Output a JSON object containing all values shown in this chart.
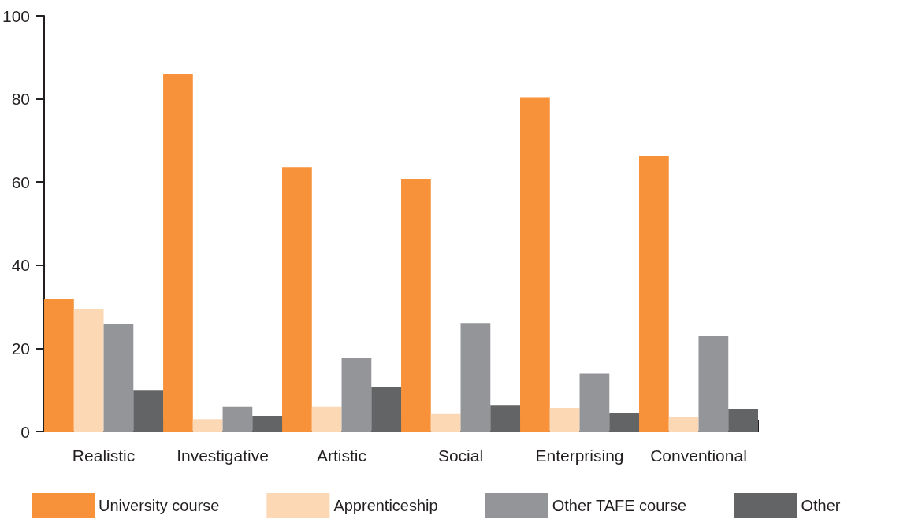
{
  "chart_data": {
    "type": "bar",
    "categories": [
      "Realistic",
      "Investigative",
      "Artistic",
      "Social",
      "Enterprising",
      "Conventional"
    ],
    "series": [
      {
        "name": "University course",
        "color": "#f7923a",
        "values": [
          31.8,
          86.0,
          63.6,
          60.8,
          80.4,
          66.3
        ]
      },
      {
        "name": "Apprenticeship",
        "color": "#fdd8b5",
        "values": [
          29.5,
          3.0,
          5.9,
          4.2,
          5.7,
          3.6
        ]
      },
      {
        "name": "Other TAFE course",
        "color": "#939598",
        "values": [
          25.9,
          5.9,
          17.6,
          26.1,
          13.9,
          22.9
        ]
      },
      {
        "name": "Other",
        "color": "#636466",
        "values": [
          10.0,
          3.8,
          10.8,
          6.4,
          4.5,
          5.3
        ]
      }
    ],
    "ylim": [
      0,
      100
    ],
    "yticks": [
      0,
      20,
      40,
      60,
      80,
      100
    ],
    "grid": false,
    "legend": "bottom"
  }
}
